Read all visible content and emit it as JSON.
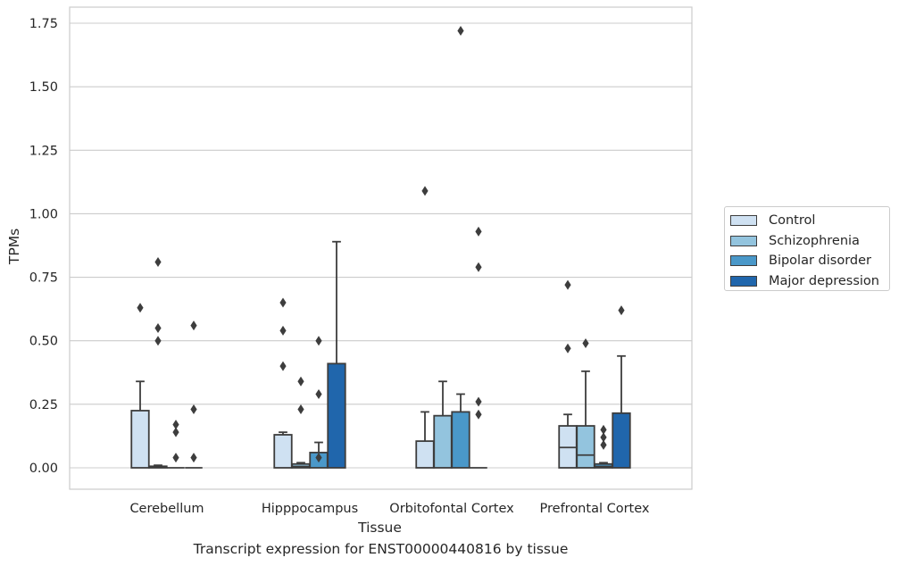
{
  "caption": "Transcript expression for ENST00000440816 by tissue",
  "chart_data": {
    "type": "box",
    "title": "",
    "xlabel": "Tissue",
    "ylabel": "TPMs",
    "ylim": [
      -0.085,
      1.81
    ],
    "yticks": [
      0.0,
      0.25,
      0.5,
      0.75,
      1.0,
      1.25,
      1.5,
      1.75
    ],
    "ytick_labels": [
      "0.00",
      "0.25",
      "0.50",
      "0.75",
      "1.00",
      "1.25",
      "1.50",
      "1.75"
    ],
    "grid": "horizontal",
    "legend_position": "outside-right",
    "categories": [
      "Cerebellum",
      "Hipppocampus",
      "Orbitofontal Cortex",
      "Prefrontal Cortex"
    ],
    "series": [
      {
        "name": "Control",
        "color": "#cfe1f2",
        "boxes": [
          {
            "q1": 0.0,
            "median": 0.0,
            "q3": 0.225,
            "whisker_low": 0.0,
            "whisker_high": 0.34,
            "outliers": [
              0.63
            ]
          },
          {
            "q1": 0.0,
            "median": 0.0,
            "q3": 0.13,
            "whisker_low": 0.0,
            "whisker_high": 0.14,
            "outliers": [
              0.4,
              0.54,
              0.65
            ]
          },
          {
            "q1": 0.0,
            "median": 0.0,
            "q3": 0.105,
            "whisker_low": 0.0,
            "whisker_high": 0.22,
            "outliers": [
              1.09
            ]
          },
          {
            "q1": 0.0,
            "median": 0.08,
            "q3": 0.165,
            "whisker_low": 0.0,
            "whisker_high": 0.21,
            "outliers": [
              0.47,
              0.72
            ]
          }
        ]
      },
      {
        "name": "Schizophrenia",
        "color": "#93c4de",
        "boxes": [
          {
            "q1": 0.0,
            "median": 0.003,
            "q3": 0.006,
            "whisker_low": 0.0,
            "whisker_high": 0.01,
            "outliers": [
              0.5,
              0.55,
              0.81
            ]
          },
          {
            "q1": 0.0,
            "median": 0.005,
            "q3": 0.015,
            "whisker_low": 0.0,
            "whisker_high": 0.02,
            "outliers": [
              0.23,
              0.34
            ]
          },
          {
            "q1": 0.0,
            "median": 0.0,
            "q3": 0.205,
            "whisker_low": 0.0,
            "whisker_high": 0.34,
            "outliers": []
          },
          {
            "q1": 0.0,
            "median": 0.05,
            "q3": 0.165,
            "whisker_low": 0.0,
            "whisker_high": 0.38,
            "outliers": [
              0.49
            ]
          }
        ]
      },
      {
        "name": "Bipolar disorder",
        "color": "#4a98c9",
        "boxes": [
          {
            "q1": 0.0,
            "median": 0.0,
            "q3": 0.0,
            "whisker_low": 0.0,
            "whisker_high": 0.0,
            "outliers": [
              0.04,
              0.14,
              0.17
            ]
          },
          {
            "q1": 0.0,
            "median": 0.0,
            "q3": 0.06,
            "whisker_low": 0.0,
            "whisker_high": 0.1,
            "outliers": [
              0.04,
              0.29,
              0.5
            ]
          },
          {
            "q1": 0.0,
            "median": 0.0,
            "q3": 0.22,
            "whisker_low": 0.0,
            "whisker_high": 0.29,
            "outliers": [
              1.72
            ]
          },
          {
            "q1": 0.0,
            "median": 0.005,
            "q3": 0.015,
            "whisker_low": 0.0,
            "whisker_high": 0.02,
            "outliers": [
              0.09,
              0.12,
              0.15
            ]
          }
        ]
      },
      {
        "name": "Major depression",
        "color": "#2066ac",
        "boxes": [
          {
            "q1": 0.0,
            "median": 0.0,
            "q3": 0.0,
            "whisker_low": 0.0,
            "whisker_high": 0.0,
            "outliers": [
              0.04,
              0.23,
              0.56
            ]
          },
          {
            "q1": 0.0,
            "median": 0.0,
            "q3": 0.41,
            "whisker_low": 0.0,
            "whisker_high": 0.89,
            "outliers": []
          },
          {
            "q1": 0.0,
            "median": 0.0,
            "q3": 0.0,
            "whisker_low": 0.0,
            "whisker_high": 0.0,
            "outliers": [
              0.21,
              0.26,
              0.79,
              0.93
            ]
          },
          {
            "q1": 0.0,
            "median": 0.0,
            "q3": 0.215,
            "whisker_low": 0.0,
            "whisker_high": 0.44,
            "outliers": [
              0.62
            ]
          }
        ]
      }
    ]
  }
}
